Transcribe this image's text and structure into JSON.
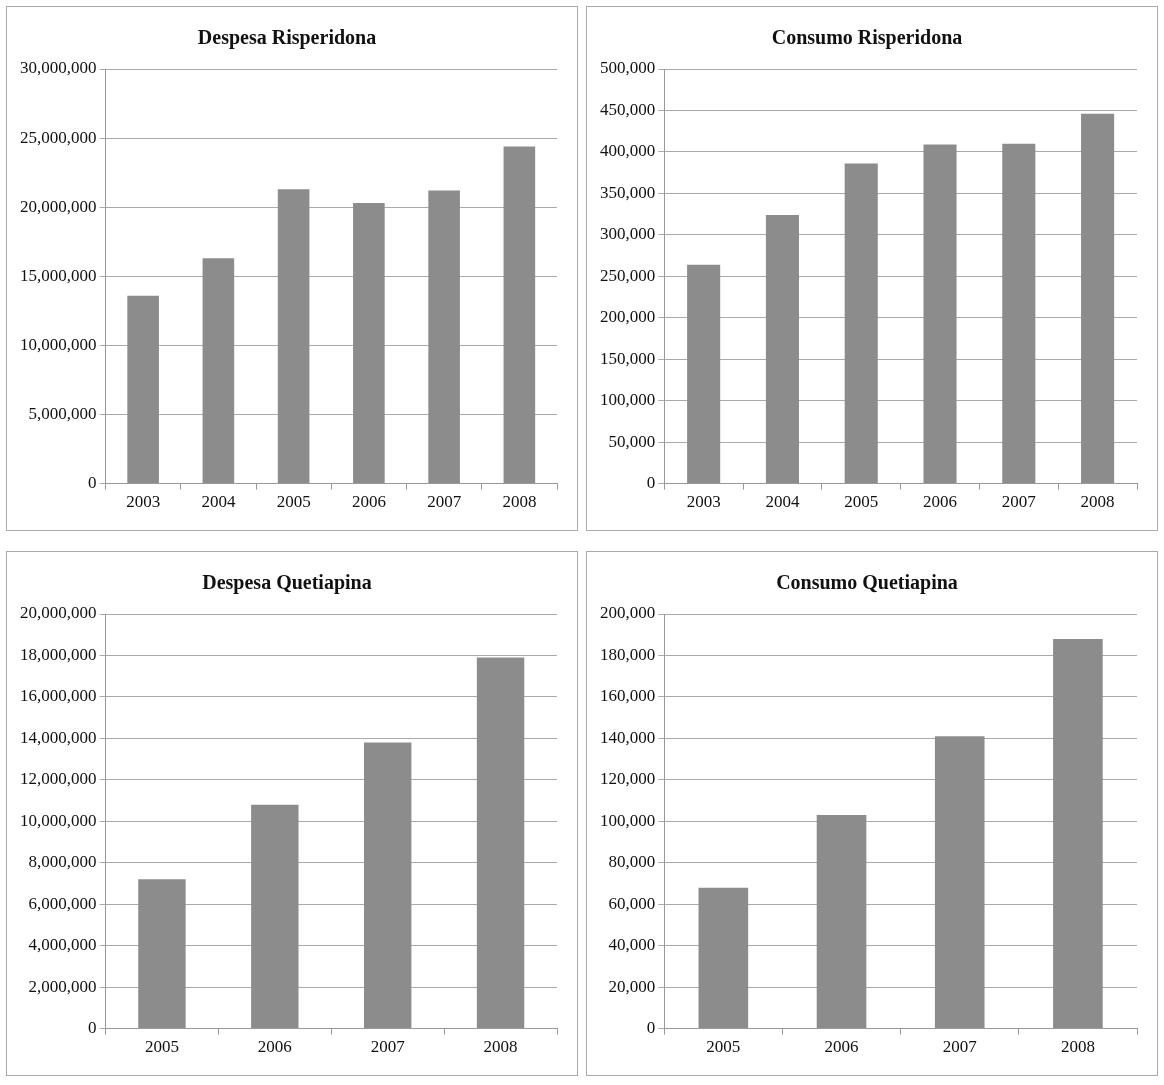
{
  "chart_data": [
    {
      "type": "bar",
      "title": "Despesa Risperidona",
      "categories": [
        "2003",
        "2004",
        "2005",
        "2006",
        "2007",
        "2008"
      ],
      "values": [
        13600000,
        16300000,
        21300000,
        20300000,
        21200000,
        24400000
      ],
      "color": "#8c8c8c",
      "ylim": [
        0,
        30000000
      ],
      "yticks": [
        {
          "value": 0,
          "label": "0"
        },
        {
          "value": 5000000,
          "label": "5,000,000"
        },
        {
          "value": 10000000,
          "label": "10,000,000"
        },
        {
          "value": 15000000,
          "label": "15,000,000"
        },
        {
          "value": 20000000,
          "label": "20,000,000"
        },
        {
          "value": 25000000,
          "label": "25,000,000"
        },
        {
          "value": 30000000,
          "label": "30,000,000"
        }
      ],
      "grid": "y"
    },
    {
      "type": "bar",
      "title": "Consumo Risperidona",
      "categories": [
        "2003",
        "2004",
        "2005",
        "2006",
        "2007",
        "2008"
      ],
      "values": [
        264000,
        324000,
        386000,
        409000,
        410000,
        446000
      ],
      "color": "#8c8c8c",
      "ylim": [
        0,
        500000
      ],
      "yticks": [
        {
          "value": 0,
          "label": "0"
        },
        {
          "value": 50000,
          "label": "50,000"
        },
        {
          "value": 100000,
          "label": "100,000"
        },
        {
          "value": 150000,
          "label": "150,000"
        },
        {
          "value": 200000,
          "label": "200,000"
        },
        {
          "value": 250000,
          "label": "250,000"
        },
        {
          "value": 300000,
          "label": "300,000"
        },
        {
          "value": 350000,
          "label": "350,000"
        },
        {
          "value": 400000,
          "label": "400,000"
        },
        {
          "value": 450000,
          "label": "450,000"
        },
        {
          "value": 500000,
          "label": "500,000"
        }
      ],
      "grid": "y"
    },
    {
      "type": "bar",
      "title": "Despesa Quetiapina",
      "categories": [
        "2005",
        "2006",
        "2007",
        "2008"
      ],
      "values": [
        7200000,
        10800000,
        13800000,
        17900000
      ],
      "color": "#8c8c8c",
      "ylim": [
        0,
        20000000
      ],
      "yticks": [
        {
          "value": 0,
          "label": "0"
        },
        {
          "value": 2000000,
          "label": "2,000,000"
        },
        {
          "value": 4000000,
          "label": "4,000,000"
        },
        {
          "value": 6000000,
          "label": "6,000,000"
        },
        {
          "value": 8000000,
          "label": "8,000,000"
        },
        {
          "value": 10000000,
          "label": "10,000,000"
        },
        {
          "value": 12000000,
          "label": "12,000,000"
        },
        {
          "value": 14000000,
          "label": "14,000,000"
        },
        {
          "value": 16000000,
          "label": "16,000,000"
        },
        {
          "value": 18000000,
          "label": "18,000,000"
        },
        {
          "value": 20000000,
          "label": "20,000,000"
        }
      ],
      "grid": "y"
    },
    {
      "type": "bar",
      "title": "Consumo Quetiapina",
      "categories": [
        "2005",
        "2006",
        "2007",
        "2008"
      ],
      "values": [
        68000,
        103000,
        141000,
        188000
      ],
      "color": "#8c8c8c",
      "ylim": [
        0,
        200000
      ],
      "yticks": [
        {
          "value": 0,
          "label": "0"
        },
        {
          "value": 20000,
          "label": "20,000"
        },
        {
          "value": 40000,
          "label": "40,000"
        },
        {
          "value": 60000,
          "label": "60,000"
        },
        {
          "value": 80000,
          "label": "80,000"
        },
        {
          "value": 100000,
          "label": "100,000"
        },
        {
          "value": 120000,
          "label": "120,000"
        },
        {
          "value": 140000,
          "label": "140,000"
        },
        {
          "value": 160000,
          "label": "160,000"
        },
        {
          "value": 180000,
          "label": "180,000"
        },
        {
          "value": 200000,
          "label": "200,000"
        }
      ],
      "grid": "y"
    }
  ]
}
